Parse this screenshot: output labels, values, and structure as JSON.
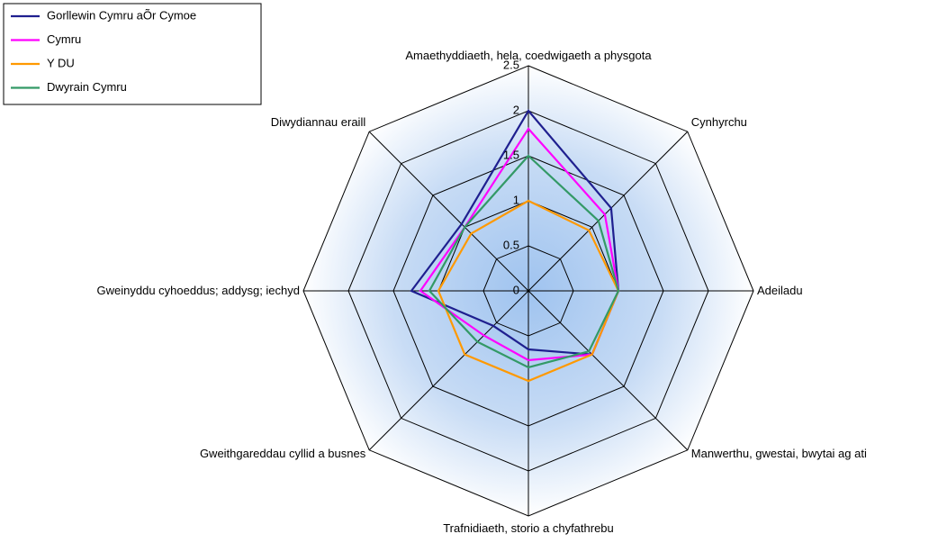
{
  "chart_data": {
    "type": "radar",
    "categories": [
      "Amaethyddiaeth, hela, coedwigaeth a physgota",
      "Cynhyrchu",
      "Adeiladu",
      "Manwerthu, gwestai, bwytai ag ati",
      "Trafnidiaeth, storio a chyfathrebu",
      "Gweithgareddau cyllid a busnes",
      "Gweinyddu cyhoeddus; addysg; iechyd",
      "Diwydiannau eraill"
    ],
    "series": [
      {
        "name": "Gorllewin Cymru aÕr Cymoe",
        "color": "#1f1f8f",
        "values": [
          2.0,
          1.3,
          1.0,
          1.0,
          0.65,
          0.55,
          1.3,
          1.05
        ]
      },
      {
        "name": "Cymru",
        "color": "#ff00ff",
        "values": [
          1.8,
          1.2,
          1.0,
          1.0,
          0.77,
          0.7,
          1.2,
          1.0
        ]
      },
      {
        "name": "Y DU",
        "color": "#ff9900",
        "values": [
          1.0,
          0.95,
          1.0,
          1.0,
          1.0,
          1.0,
          1.0,
          0.9
        ]
      },
      {
        "name": "Dwyrain Cymru",
        "color": "#339966",
        "values": [
          1.5,
          1.1,
          1.0,
          0.95,
          0.85,
          0.8,
          1.1,
          1.0
        ]
      }
    ],
    "ylim": [
      0,
      2.5
    ],
    "yticks": [
      0,
      0.5,
      1,
      1.5,
      2,
      2.5
    ],
    "grid": true,
    "legend": "top-left"
  }
}
